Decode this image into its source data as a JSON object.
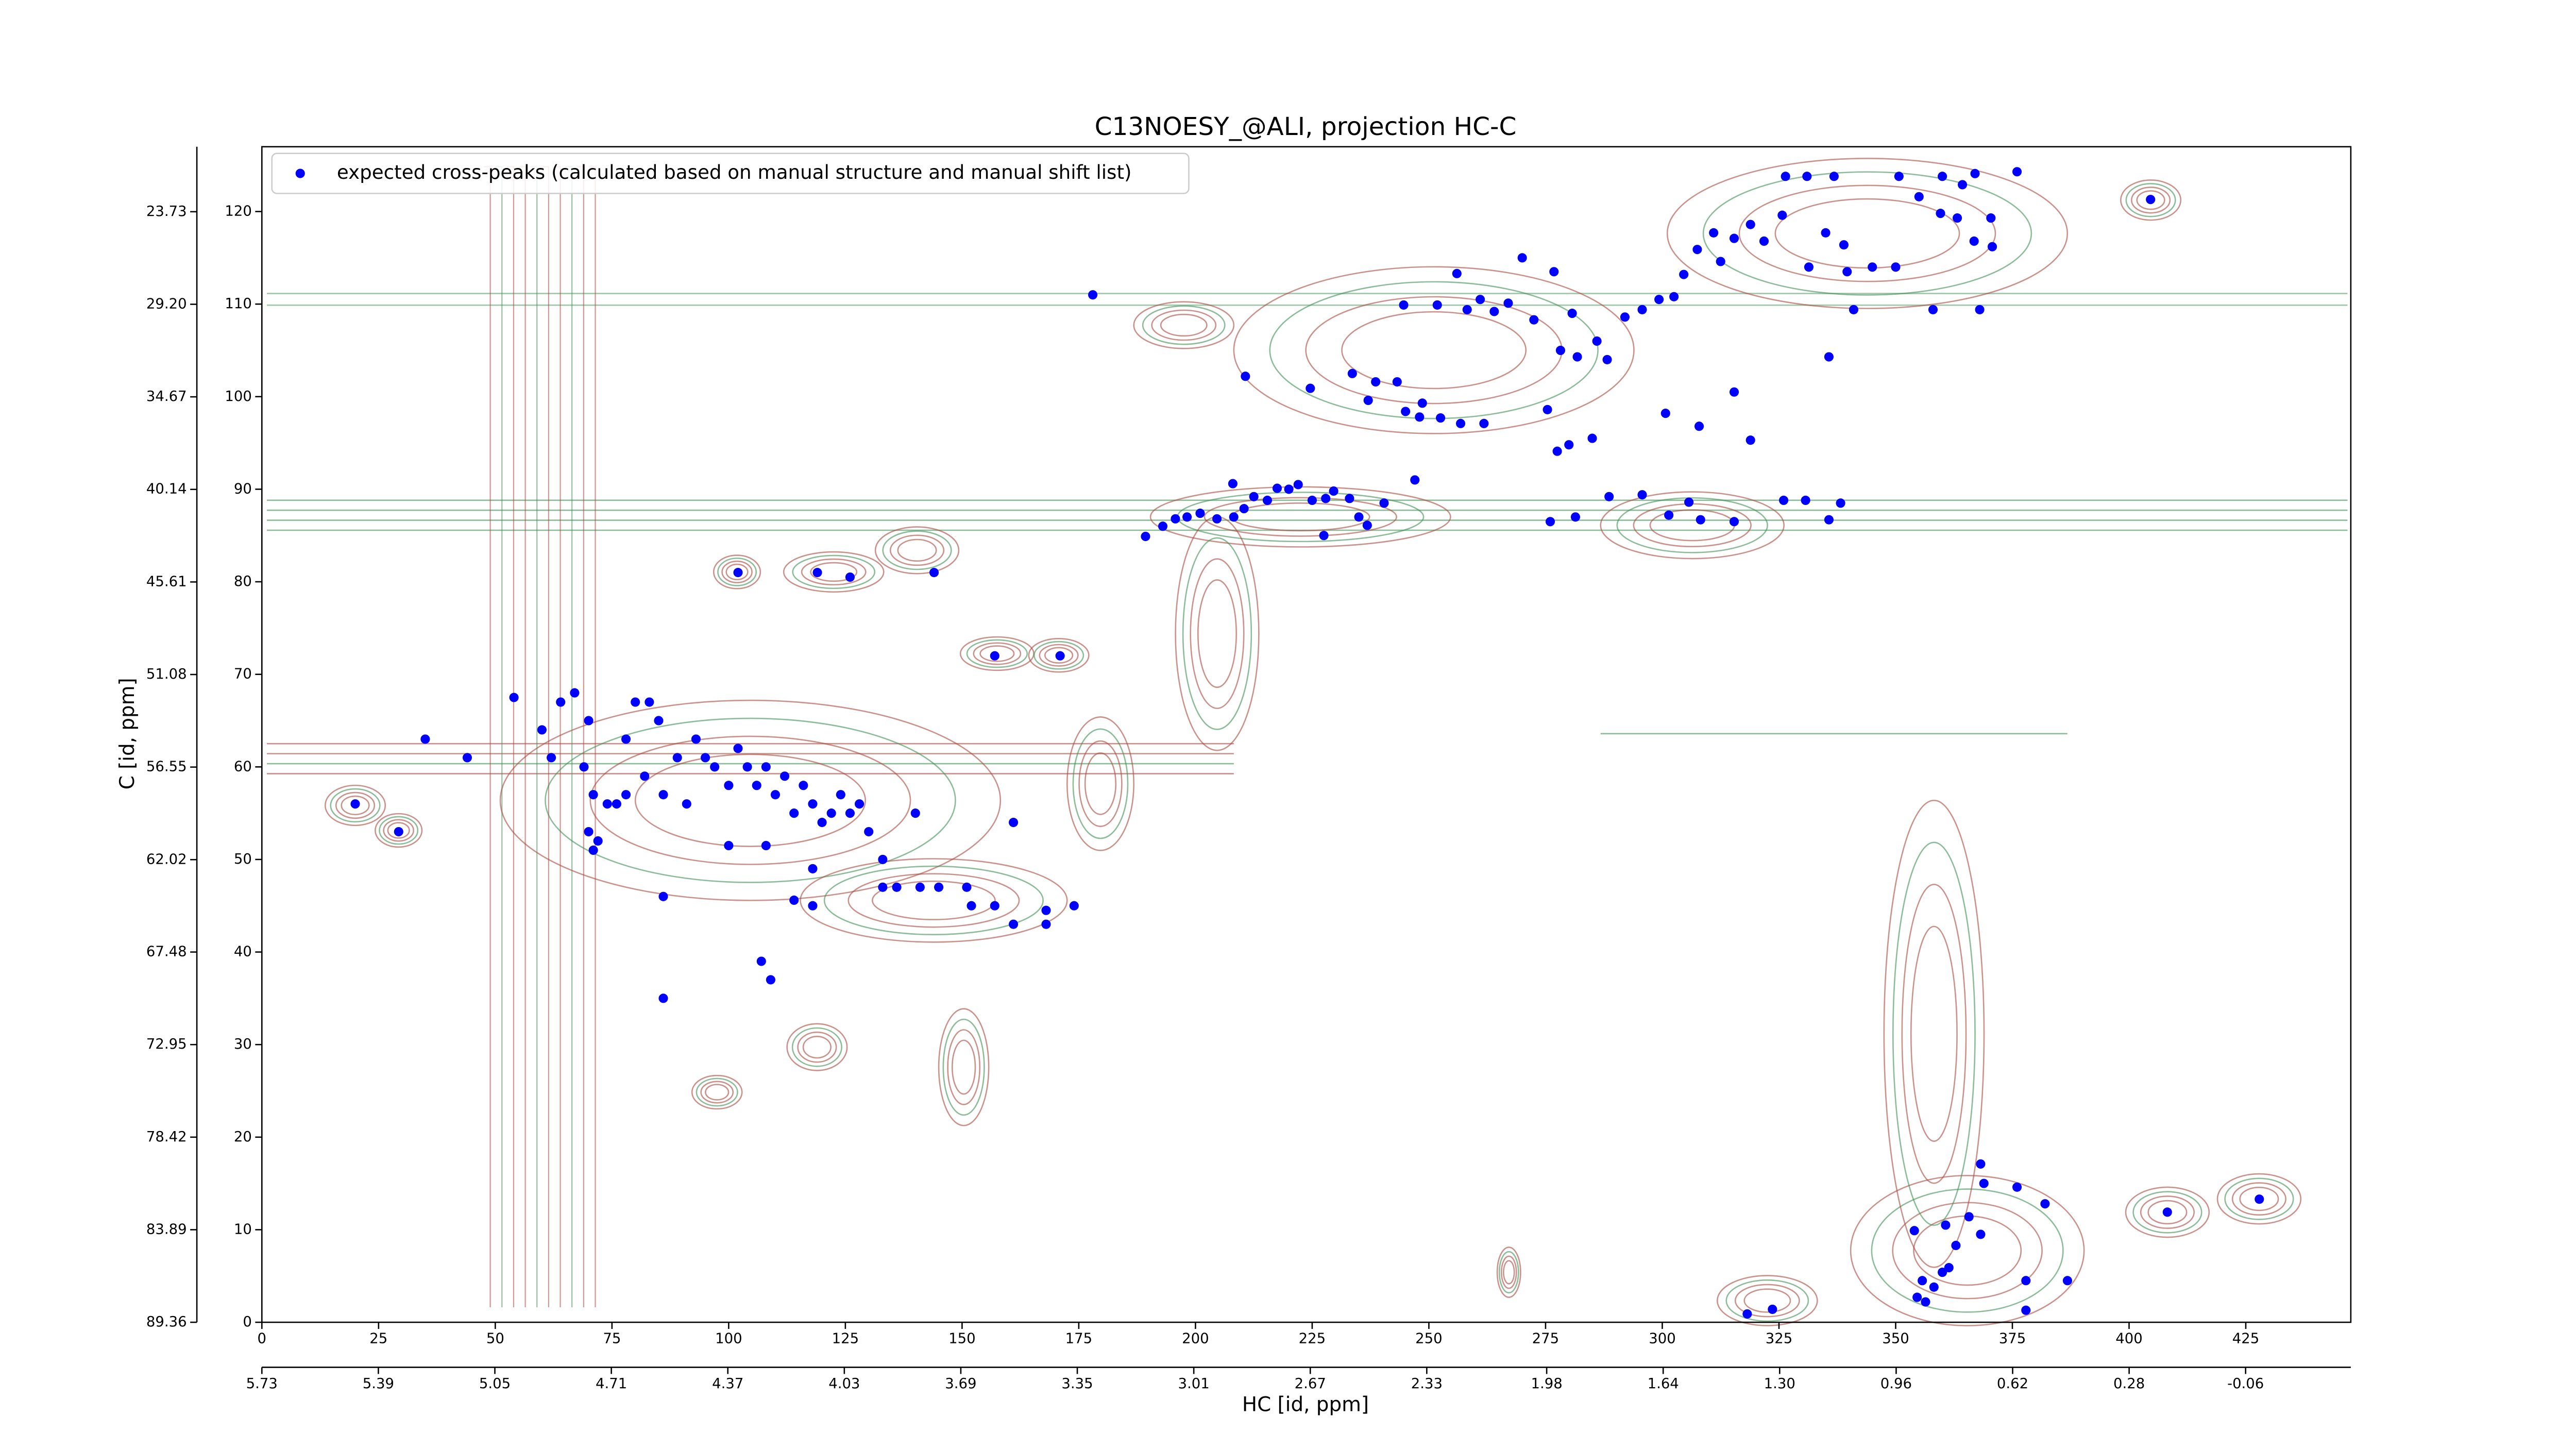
{
  "chart_data": {
    "type": "scatter",
    "title": "C13NOESY_@ALI, projection HC-C",
    "xlabel": "HC [id, ppm]",
    "ylabel": "C [id, ppm]",
    "legend": "upper left",
    "xlim": [
      0,
      447.5
    ],
    "xticks": [
      0,
      25,
      50,
      75,
      100,
      125,
      150,
      175,
      200,
      225,
      250,
      275,
      300,
      325,
      350,
      375,
      400,
      425
    ],
    "ylim": [
      0,
      127
    ],
    "yticks": [
      0,
      10,
      20,
      30,
      40,
      50,
      60,
      70,
      80,
      90,
      100,
      110,
      120
    ],
    "x2lim": [
      5.73,
      -0.367
    ],
    "x2ticks": [
      5.73,
      5.39,
      5.05,
      4.71,
      4.37,
      4.03,
      3.69,
      3.35,
      3.01,
      2.67,
      2.33,
      1.98,
      1.64,
      {
        "value": 1.3,
        "label": "1.30"
      },
      0.96,
      0.62,
      0.28,
      -0.06
    ],
    "y2lim": [
      89.36,
      19.89
    ],
    "y2ticks": [
      89.36,
      83.89,
      78.42,
      72.95,
      67.48,
      62.02,
      56.55,
      51.08,
      45.61,
      40.14,
      34.67,
      {
        "value": 29.2,
        "label": "29.20"
      },
      23.73
    ],
    "series": [
      {
        "name": "expected cross-peaks (calculated based on manual structure and manual shift list)",
        "color": "#0000ff",
        "x": [
          20,
          29.3,
          35,
          44,
          54,
          60,
          62,
          64,
          67,
          70,
          69,
          71,
          70,
          71,
          72,
          74,
          76,
          78,
          80,
          83,
          85,
          78,
          82,
          86,
          89,
          91,
          93,
          95,
          97,
          100,
          102,
          104,
          106,
          108,
          110,
          112,
          114,
          116,
          118,
          120,
          122,
          124,
          126,
          128,
          130,
          133,
          140,
          86,
          86,
          100,
          108,
          118,
          114,
          118,
          133,
          136,
          141,
          145,
          151,
          152,
          157,
          161,
          168,
          168,
          174,
          161,
          107,
          109,
          102,
          119,
          126,
          144,
          157,
          171,
          178,
          189.3,
          193,
          195.7,
          198.2,
          201,
          204.6,
          208.2,
          210.4,
          212.5,
          215.4,
          217.5,
          220,
          222,
          225,
          227.9,
          229.6,
          233,
          235,
          236.8,
          240.4,
          247,
          227.5,
          208,
          210.7,
          224.6,
          233.6,
          238.6,
          243.2,
          237,
          245,
          248,
          252.5,
          256.8,
          261.8,
          248.6,
          275.4,
          280,
          288.6,
          295.7,
          301.4,
          305.7,
          308.2,
          315.4,
          326,
          330.7,
          335.7,
          338.2,
          276,
          281.4,
          277.5,
          285,
          300.7,
          307.9,
          315.4,
          318.9,
          335.7,
          244.6,
          251.8,
          256,
          258.2,
          261,
          264,
          267,
          270,
          272.5,
          276.8,
          280.7,
          278.2,
          281.8,
          286,
          288.2,
          292,
          295.7,
          299.3,
          302.5,
          304.6,
          307.5,
          311,
          315.4,
          318.9,
          321.8,
          312.5,
          325.7,
          331.4,
          335,
          338.9,
          339.6,
          345,
          350,
          341,
          326.4,
          331,
          336.8,
          350.7,
          360,
          355,
          359.6,
          364.3,
          367,
          363.2,
          370.4,
          366.8,
          376,
          358,
          368,
          370.7,
          404.6,
          318.2,
          323.6,
          354,
          355.7,
          358.2,
          360,
          354.6,
          356.4,
          361.4,
          360.7,
          362.9,
          365.7,
          368.2,
          368.9,
          376,
          377.9,
          377.9,
          386.8,
          408.2,
          427.9,
          368.2,
          382
        ],
        "y": [
          56,
          53,
          63,
          61,
          67.5,
          64,
          61,
          67,
          68,
          65,
          60,
          57,
          53,
          51,
          52,
          56,
          56,
          63,
          67,
          67,
          65,
          57,
          59,
          57,
          61,
          56,
          63,
          61,
          60,
          58,
          62,
          60,
          58,
          60,
          57,
          59,
          55,
          58,
          56,
          54,
          55,
          57,
          55,
          56,
          53,
          50,
          55,
          46,
          35,
          51.5,
          51.5,
          49,
          45.6,
          45,
          47,
          47,
          47,
          47,
          47,
          45,
          45,
          43,
          43,
          44.5,
          45,
          54,
          39,
          37,
          81,
          81,
          80.5,
          81,
          72,
          72,
          111,
          84.9,
          86,
          86.8,
          87,
          87.4,
          86.8,
          87,
          87.9,
          89.2,
          88.8,
          90.1,
          90,
          90.5,
          88.8,
          89,
          89.8,
          89,
          87,
          86.1,
          88.5,
          91,
          85,
          90.6,
          102.2,
          100.9,
          102.5,
          101.6,
          101.6,
          99.6,
          98.4,
          97.8,
          97.7,
          97.1,
          97.1,
          99.3,
          98.6,
          94.8,
          89.2,
          89.4,
          87.2,
          88.6,
          86.7,
          86.5,
          88.8,
          88.8,
          86.7,
          88.5,
          86.5,
          87,
          94.1,
          95.5,
          98.2,
          96.8,
          100.5,
          95.3,
          104.3,
          109.9,
          109.9,
          113.3,
          109.4,
          110.5,
          109.2,
          110.1,
          115,
          108.3,
          113.5,
          109,
          105,
          104.3,
          106,
          104,
          108.6,
          109.4,
          110.5,
          110.8,
          113.2,
          115.9,
          117.7,
          117.1,
          118.6,
          116.8,
          114.6,
          119.6,
          114,
          117.7,
          116.4,
          113.5,
          114,
          114,
          109.4,
          123.8,
          123.8,
          123.8,
          123.8,
          123.8,
          121.6,
          119.8,
          122.9,
          124.1,
          119.3,
          119.3,
          116.8,
          124.3,
          109.4,
          109.4,
          116.2,
          121.3,
          0.9,
          1.4,
          9.9,
          4.5,
          3.8,
          5.4,
          2.7,
          2.2,
          5.9,
          10.5,
          8.3,
          11.4,
          17.1,
          15,
          14.6,
          4.5,
          1.3,
          4.5,
          11.9,
          13.3,
          9.5,
          12.8
        ]
      }
    ]
  }
}
